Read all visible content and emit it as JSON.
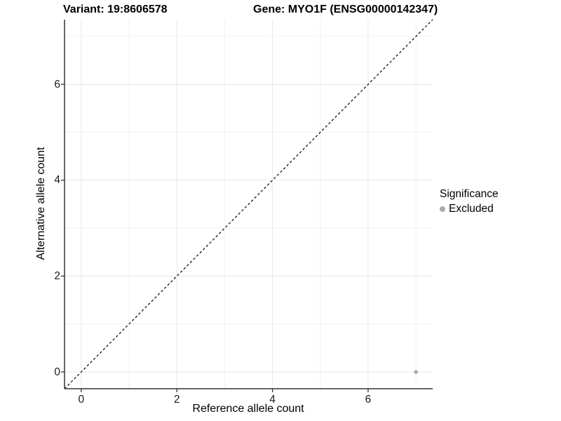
{
  "figure": {
    "title_left": "Variant: 19:8606578",
    "title_right": "Gene: MYO1F (ENSG00000142347)"
  },
  "chart_data": {
    "type": "scatter",
    "title": "Variant: 19:8606578  |  Gene: MYO1F (ENSG00000142347)",
    "xlabel": "Reference allele count",
    "ylabel": "Alternative allele count",
    "xlim": [
      -0.35,
      7.35
    ],
    "ylim": [
      -0.35,
      7.35
    ],
    "x_major_ticks": [
      0,
      2,
      4,
      6
    ],
    "y_major_ticks": [
      0,
      2,
      4,
      6
    ],
    "x_minor_gridlines": [
      1,
      3,
      5,
      7
    ],
    "y_minor_gridlines": [
      1,
      3,
      5,
      7
    ],
    "grid": true,
    "reference_line": {
      "equation": "y = x",
      "style": "dashed",
      "color": "#000000"
    },
    "series": [
      {
        "name": "Excluded",
        "color": "#aaaaaa",
        "points": [
          {
            "x": 7,
            "y": 0
          }
        ]
      }
    ],
    "legend": {
      "title": "Significance",
      "position": "right",
      "items": [
        {
          "label": "Excluded",
          "color": "#aaaaaa"
        }
      ]
    }
  },
  "colors": {
    "background": "#ffffff",
    "axis_line": "#333333",
    "grid_major": "#e7e7e7",
    "grid_minor": "#f1f1f1",
    "reference_line": "#000000",
    "point": "#aaaaaa",
    "text": "#000000"
  }
}
